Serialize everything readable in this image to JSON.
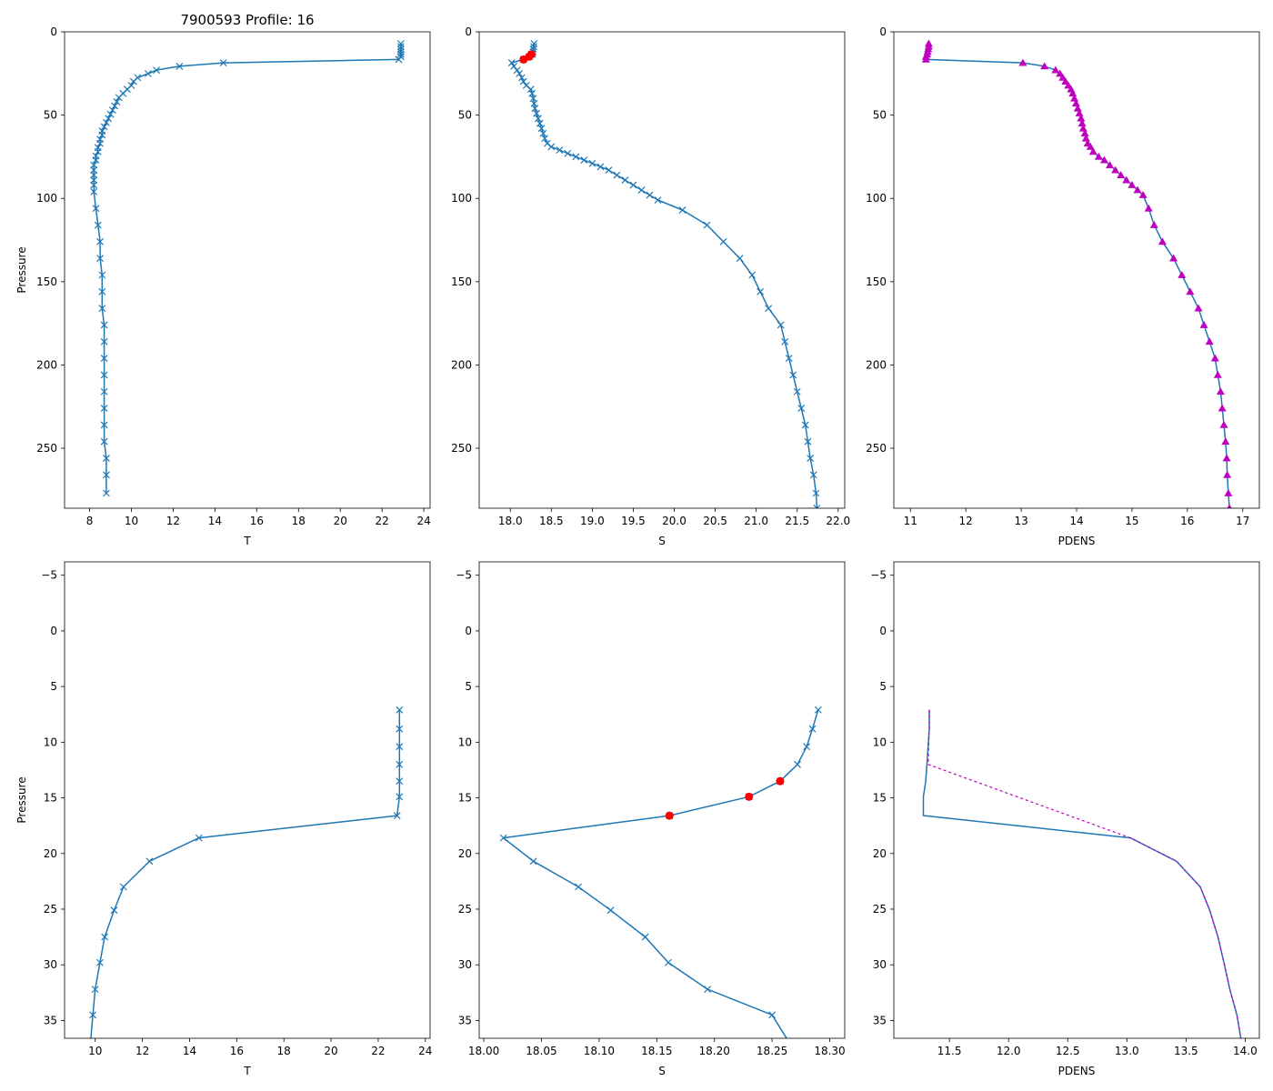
{
  "figure": {
    "title": "7900593 Profile: 16",
    "colors": {
      "line": "#1f77b4",
      "flag": "#ff0000",
      "density": "#bf00bf"
    }
  },
  "chart_data": [
    {
      "name": "top-temperature",
      "type": "line",
      "xlabel": "T",
      "ylabel": "Pressure",
      "xlim": [
        6.8,
        24.3
      ],
      "ylim": [
        286,
        0
      ],
      "xticks": [
        8,
        10,
        12,
        14,
        16,
        18,
        20,
        22,
        24
      ],
      "yticks": [
        0,
        50,
        100,
        150,
        200,
        250
      ],
      "marker": "x",
      "series": [
        {
          "name": "T",
          "x": [
            22.9,
            22.9,
            22.9,
            22.9,
            22.9,
            22.9,
            22.8,
            14.4,
            12.3,
            11.2,
            10.8,
            10.3,
            10.1,
            10.0,
            9.8,
            9.6,
            9.4,
            9.3,
            9.2,
            9.1,
            9.0,
            8.9,
            8.8,
            8.7,
            8.6,
            8.6,
            8.5,
            8.5,
            8.4,
            8.4,
            8.3,
            8.3,
            8.2,
            8.2,
            8.2,
            8.2,
            8.2,
            8.2,
            8.3,
            8.4,
            8.5,
            8.5,
            8.6,
            8.6,
            8.6,
            8.7,
            8.7,
            8.7,
            8.7,
            8.7,
            8.7,
            8.7,
            8.7,
            8.8,
            8.8,
            8.8
          ],
          "y": [
            7.1,
            8.8,
            10.4,
            12.0,
            13.5,
            14.9,
            16.6,
            18.6,
            20.7,
            23.0,
            25.1,
            27.5,
            29.8,
            32.2,
            34.5,
            37.0,
            39.5,
            42.0,
            44.5,
            47.0,
            49.5,
            52.0,
            54.5,
            57.0,
            59.5,
            62.0,
            64.5,
            67.0,
            69.5,
            72.0,
            74.5,
            77.0,
            80.0,
            83.0,
            86.0,
            89.0,
            92.0,
            96.0,
            106.0,
            116.0,
            126.0,
            136.0,
            146.0,
            156.0,
            166.0,
            176.0,
            186.0,
            196.0,
            206.0,
            216.0,
            226.0,
            236.0,
            246.0,
            256.0,
            266.0,
            277.0
          ]
        }
      ]
    },
    {
      "name": "top-salinity",
      "type": "line",
      "xlabel": "S",
      "ylabel": "",
      "xlim": [
        17.62,
        22.08
      ],
      "ylim": [
        286,
        0
      ],
      "xticks": [
        18.0,
        18.5,
        19.0,
        19.5,
        20.0,
        20.5,
        21.0,
        21.5,
        22.0
      ],
      "yticks": [
        0,
        50,
        100,
        150,
        200,
        250
      ],
      "marker": "x",
      "series": [
        {
          "name": "S",
          "x": [
            18.29,
            18.285,
            18.28,
            18.277,
            18.272,
            18.257,
            18.23,
            18.161,
            18.017,
            18.043,
            18.082,
            18.11,
            18.14,
            18.16,
            18.194,
            18.25,
            18.265,
            18.28,
            18.29,
            18.3,
            18.32,
            18.34,
            18.36,
            18.38,
            18.4,
            18.42,
            18.45,
            18.5,
            18.6,
            18.7,
            18.8,
            18.9,
            19.0,
            19.1,
            19.2,
            19.3,
            19.4,
            19.5,
            19.6,
            19.7,
            19.8,
            20.1,
            20.4,
            20.6,
            20.8,
            20.95,
            21.05,
            21.15,
            21.3,
            21.35,
            21.4,
            21.45,
            21.5,
            21.55,
            21.6,
            21.63,
            21.66,
            21.7,
            21.73,
            21.74
          ],
          "y": [
            7.1,
            8.8,
            10.4,
            12.0,
            13.5,
            13.5,
            14.9,
            16.6,
            18.6,
            20.7,
            23.0,
            25.1,
            27.5,
            29.8,
            32.2,
            34.5,
            37.0,
            40.0,
            43.0,
            46.0,
            49.0,
            52.0,
            55.0,
            58.0,
            61.0,
            64.0,
            67.0,
            69.0,
            71.0,
            73.0,
            75.0,
            77.0,
            79.0,
            81.0,
            83.0,
            86.0,
            89.0,
            92.0,
            95.0,
            98.0,
            101.0,
            107.0,
            116.0,
            126.0,
            136.0,
            146.0,
            156.0,
            166.0,
            176.0,
            186.0,
            196.0,
            206.0,
            216.0,
            226.0,
            236.0,
            246.0,
            256.0,
            266.0,
            277.0,
            286.0
          ]
        }
      ],
      "flagged": {
        "x": [
          18.257,
          18.23,
          18.161
        ],
        "y": [
          13.5,
          14.9,
          16.6
        ]
      }
    },
    {
      "name": "top-density",
      "type": "line",
      "xlabel": "PDENS",
      "ylabel": "",
      "xlim": [
        10.7,
        17.3
      ],
      "ylim": [
        286,
        0
      ],
      "xticks": [
        11,
        12,
        13,
        14,
        15,
        16,
        17
      ],
      "yticks": [
        0,
        50,
        100,
        150,
        200,
        250
      ],
      "marker": "^",
      "series": [
        {
          "name": "PDENS",
          "x": [
            11.33,
            11.33,
            11.32,
            11.31,
            11.3,
            11.28,
            11.28,
            13.03,
            13.42,
            13.62,
            13.7,
            13.75,
            13.8,
            13.85,
            13.9,
            13.93,
            13.96,
            13.99,
            14.02,
            14.05,
            14.08,
            14.1,
            14.12,
            14.15,
            14.17,
            14.2,
            14.25,
            14.3,
            14.4,
            14.5,
            14.6,
            14.7,
            14.8,
            14.9,
            15.0,
            15.1,
            15.2,
            15.3,
            15.4,
            15.55,
            15.75,
            15.9,
            16.05,
            16.2,
            16.3,
            16.4,
            16.5,
            16.55,
            16.6,
            16.63,
            16.66,
            16.69,
            16.71,
            16.72,
            16.74,
            16.76
          ],
          "y": [
            7.1,
            8.8,
            10.4,
            12.0,
            13.5,
            14.9,
            16.6,
            18.6,
            20.7,
            23.0,
            25.1,
            27.5,
            29.8,
            32.2,
            34.5,
            37.0,
            40.0,
            43.0,
            46.0,
            49.0,
            52.0,
            55.0,
            58.0,
            61.0,
            64.0,
            67.0,
            69.0,
            72.0,
            75.0,
            77.0,
            80.0,
            83.0,
            86.0,
            89.0,
            92.0,
            95.0,
            98.0,
            106.0,
            116.0,
            126.0,
            136.0,
            146.0,
            156.0,
            166.0,
            176.0,
            186.0,
            196.0,
            206.0,
            216.0,
            226.0,
            236.0,
            246.0,
            256.0,
            266.0,
            277.0,
            286.0
          ]
        }
      ]
    },
    {
      "name": "bottom-temperature",
      "type": "line",
      "xlabel": "T",
      "ylabel": "Pressure",
      "xlim": [
        8.7,
        24.2
      ],
      "ylim": [
        36.6,
        -6.2
      ],
      "xticks": [
        10,
        12,
        14,
        16,
        18,
        20,
        22,
        24
      ],
      "yticks": [
        -5,
        0,
        5,
        10,
        15,
        20,
        25,
        30,
        35
      ],
      "marker": "x",
      "series": [
        {
          "name": "T",
          "x": [
            22.9,
            22.9,
            22.9,
            22.9,
            22.9,
            22.9,
            22.8,
            14.4,
            12.3,
            11.2,
            10.8,
            10.4,
            10.2,
            10.0,
            9.9,
            9.8
          ],
          "y": [
            7.1,
            8.8,
            10.4,
            12.0,
            13.5,
            14.9,
            16.6,
            18.6,
            20.7,
            23.0,
            25.1,
            27.5,
            29.8,
            32.2,
            34.5,
            37.0
          ]
        }
      ]
    },
    {
      "name": "bottom-salinity",
      "type": "line",
      "xlabel": "S",
      "ylabel": "",
      "xlim": [
        17.996,
        18.313
      ],
      "ylim": [
        36.6,
        -6.2
      ],
      "xticks": [
        18.0,
        18.05,
        18.1,
        18.15,
        18.2,
        18.25,
        18.3
      ],
      "yticks": [
        -5,
        0,
        5,
        10,
        15,
        20,
        25,
        30,
        35
      ],
      "marker": "x",
      "series": [
        {
          "name": "S",
          "x": [
            18.29,
            18.285,
            18.28,
            18.272,
            18.257,
            18.23,
            18.161,
            18.017,
            18.043,
            18.082,
            18.11,
            18.14,
            18.16,
            18.194,
            18.25,
            18.265
          ],
          "y": [
            7.1,
            8.8,
            10.4,
            12.0,
            13.5,
            14.9,
            16.6,
            18.6,
            20.7,
            23.0,
            25.1,
            27.5,
            29.8,
            32.2,
            34.5,
            37.0
          ]
        }
      ],
      "flagged": {
        "x": [
          18.257,
          18.23,
          18.161
        ],
        "y": [
          13.5,
          14.9,
          16.6
        ]
      }
    },
    {
      "name": "bottom-density",
      "type": "line",
      "xlabel": "PDENS",
      "ylabel": "",
      "xlim": [
        11.03,
        14.12
      ],
      "ylim": [
        36.6,
        -6.2
      ],
      "xticks": [
        11.5,
        12.0,
        12.5,
        13.0,
        13.5,
        14.0
      ],
      "yticks": [
        -5,
        0,
        5,
        10,
        15,
        20,
        25,
        30,
        35
      ],
      "marker": "",
      "series": [
        {
          "name": "PDENS",
          "x": [
            11.33,
            11.33,
            11.32,
            11.31,
            11.3,
            11.28,
            11.28,
            13.03,
            13.42,
            13.62,
            13.7,
            13.77,
            13.82,
            13.87,
            13.93,
            13.97
          ],
          "y": [
            7.1,
            8.8,
            10.4,
            12.0,
            13.5,
            14.9,
            16.6,
            18.6,
            20.7,
            23.0,
            25.1,
            27.5,
            29.8,
            32.2,
            34.5,
            37.0
          ]
        }
      ],
      "overlay": {
        "x": [
          11.33,
          11.33,
          11.32,
          13.03,
          13.42,
          13.62,
          13.7,
          13.77,
          13.82,
          13.87,
          13.93,
          13.97
        ],
        "y": [
          7.1,
          8.8,
          12.0,
          18.6,
          20.7,
          23.0,
          25.1,
          27.5,
          29.8,
          32.2,
          34.5,
          37.0
        ]
      }
    }
  ]
}
